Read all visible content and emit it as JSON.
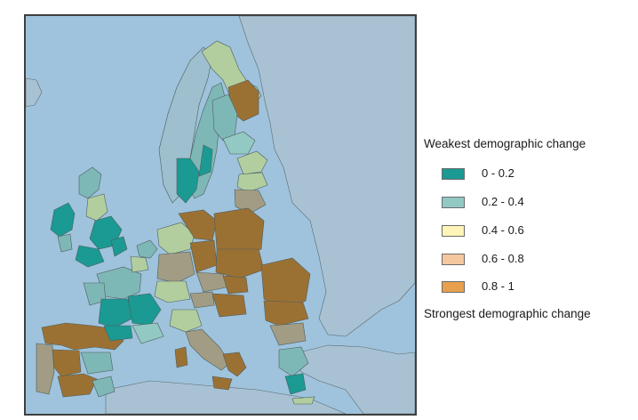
{
  "legend": {
    "top_label": "Weakest demographic change",
    "bottom_label": "Strongest demographic change",
    "classes": [
      {
        "label": "0 - 0.2",
        "color": "#1a9a92"
      },
      {
        "label": "0.2 - 0.4",
        "color": "#93c9c3"
      },
      {
        "label": "0.4 - 0.6",
        "color": "#fff5b8"
      },
      {
        "label": "0.6 - 0.8",
        "color": "#f5c79e"
      },
      {
        "label": "0.8 - 1",
        "color": "#e8a04f"
      }
    ]
  },
  "map": {
    "sea_color": "#9fc3dc",
    "non_eu_land_color": "#a8c2d4",
    "border_color": "#5a6a70",
    "region_colors_in_map": {
      "class_0_0_2": "#1a9a92",
      "class_0_2_0_4": "#7eb8b6",
      "light_green": "#b2ce9f",
      "class_0_8_1": "#9b7133",
      "grey_brown": "#a19c83"
    }
  }
}
